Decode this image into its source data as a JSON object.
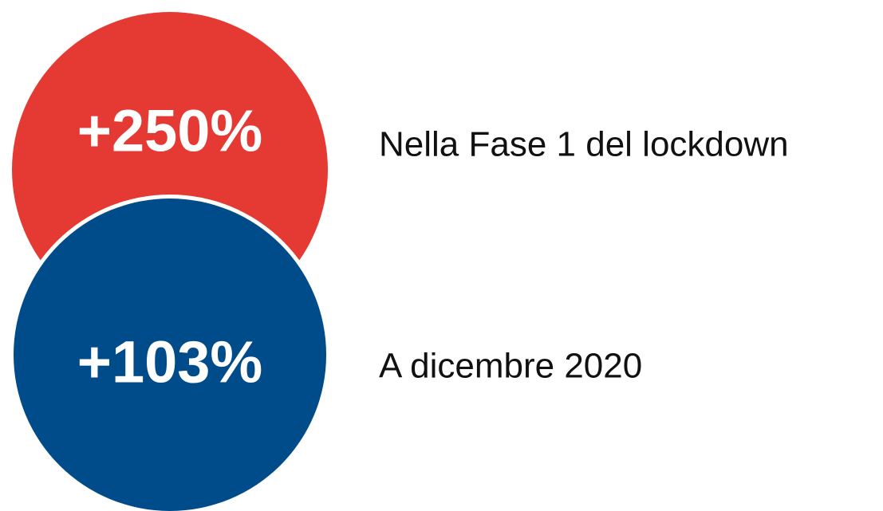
{
  "items": [
    {
      "figure": "+250%",
      "caption": "Nella Fase 1 del lockdown"
    },
    {
      "figure": "+103%",
      "caption": "A dicembre 2020"
    }
  ]
}
